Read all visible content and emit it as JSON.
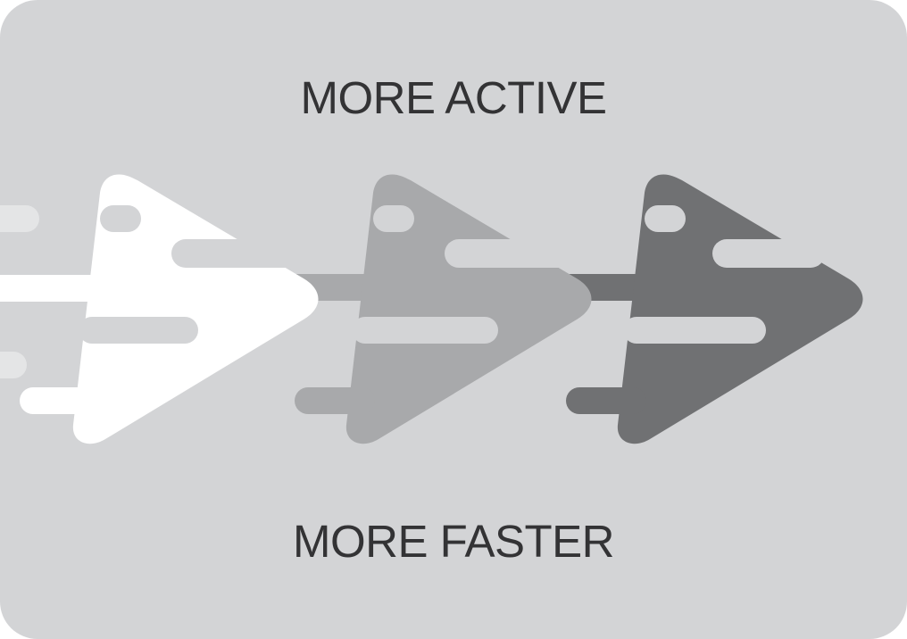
{
  "headline_top": "MORE ACTIVE",
  "headline_bottom": "MORE FASTER",
  "colors": {
    "background": "#d3d4d6",
    "text": "#333335",
    "arrow_light": "#ffffff",
    "arrow_medium": "#a8a9ab",
    "arrow_dark": "#707173"
  },
  "icons": [
    "speed-arrow-icon",
    "speed-arrow-icon",
    "speed-arrow-icon"
  ]
}
